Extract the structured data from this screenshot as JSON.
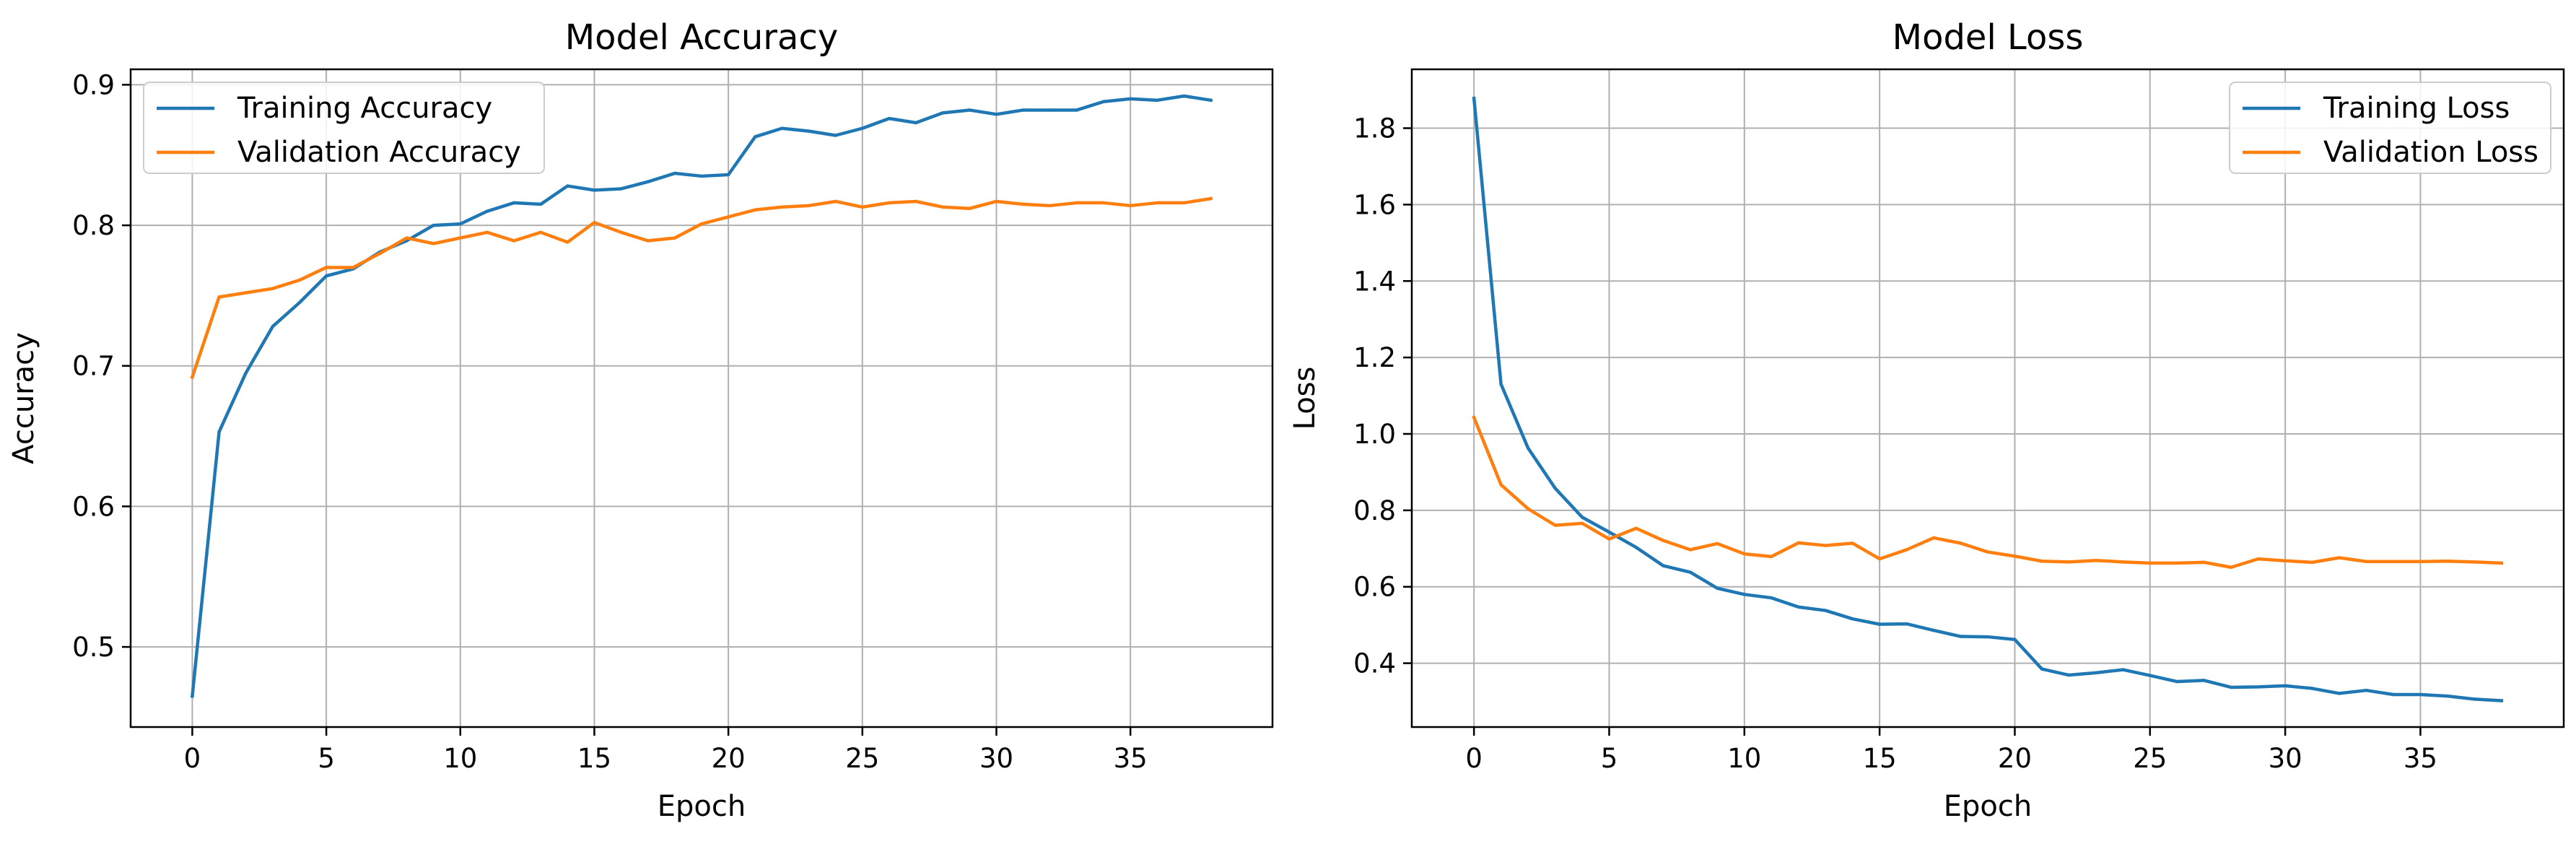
{
  "chart_data": [
    {
      "type": "line",
      "title": "Model Accuracy",
      "xlabel": "Epoch",
      "ylabel": "Accuracy",
      "xlim": [
        -2.3,
        40.3
      ],
      "ylim": [
        0.443,
        0.911
      ],
      "xticks": [
        0,
        5,
        10,
        15,
        20,
        25,
        30,
        35
      ],
      "yticks": [
        0.5,
        0.6,
        0.7,
        0.8,
        0.9
      ],
      "ytick_labels": [
        "0.5",
        "0.6",
        "0.7",
        "0.8",
        "0.9"
      ],
      "grid": true,
      "legend_position": "upper-left",
      "series": [
        {
          "name": "Training Accuracy",
          "color": "#1f77b4",
          "x": [
            0,
            1,
            2,
            3,
            4,
            5,
            6,
            7,
            8,
            9,
            10,
            11,
            12,
            13,
            14,
            15,
            16,
            17,
            18,
            19,
            20,
            21,
            22,
            23,
            24,
            25,
            26,
            27,
            28,
            29,
            30,
            31,
            32,
            33,
            34,
            35,
            36,
            37,
            38
          ],
          "values": [
            0.465,
            0.653,
            0.695,
            0.728,
            0.745,
            0.764,
            0.769,
            0.781,
            0.789,
            0.8,
            0.801,
            0.81,
            0.816,
            0.815,
            0.828,
            0.825,
            0.826,
            0.831,
            0.837,
            0.835,
            0.836,
            0.863,
            0.869,
            0.867,
            0.864,
            0.869,
            0.876,
            0.873,
            0.88,
            0.882,
            0.879,
            0.882,
            0.882,
            0.882,
            0.888,
            0.89,
            0.889,
            0.892,
            0.889
          ]
        },
        {
          "name": "Validation Accuracy",
          "color": "#ff7f0e",
          "x": [
            0,
            1,
            2,
            3,
            4,
            5,
            6,
            7,
            8,
            9,
            10,
            11,
            12,
            13,
            14,
            15,
            16,
            17,
            18,
            19,
            20,
            21,
            22,
            23,
            24,
            25,
            26,
            27,
            28,
            29,
            30,
            31,
            32,
            33,
            34,
            35,
            36,
            37,
            38
          ],
          "values": [
            0.692,
            0.749,
            0.752,
            0.755,
            0.761,
            0.77,
            0.77,
            0.78,
            0.791,
            0.787,
            0.791,
            0.795,
            0.789,
            0.795,
            0.788,
            0.802,
            0.795,
            0.789,
            0.791,
            0.801,
            0.806,
            0.811,
            0.813,
            0.814,
            0.817,
            0.813,
            0.816,
            0.817,
            0.813,
            0.812,
            0.817,
            0.815,
            0.814,
            0.816,
            0.816,
            0.814,
            0.816,
            0.816,
            0.819
          ]
        }
      ]
    },
    {
      "type": "line",
      "title": "Model Loss",
      "xlabel": "Epoch",
      "ylabel": "Loss",
      "xlim": [
        -2.3,
        40.3
      ],
      "ylim": [
        0.233,
        1.954
      ],
      "xticks": [
        0,
        5,
        10,
        15,
        20,
        25,
        30,
        35
      ],
      "yticks": [
        0.4,
        0.6,
        0.8,
        1.0,
        1.2,
        1.4,
        1.6,
        1.8
      ],
      "ytick_labels": [
        "0.4",
        "0.6",
        "0.8",
        "1.0",
        "1.2",
        "1.4",
        "1.6",
        "1.8"
      ],
      "grid": true,
      "legend_position": "upper-right",
      "series": [
        {
          "name": "Training Loss",
          "color": "#1f77b4",
          "x": [
            0,
            1,
            2,
            3,
            4,
            5,
            6,
            7,
            8,
            9,
            10,
            11,
            12,
            13,
            14,
            15,
            16,
            17,
            18,
            19,
            20,
            21,
            22,
            23,
            24,
            25,
            26,
            27,
            28,
            29,
            30,
            31,
            32,
            33,
            34,
            35,
            36,
            37,
            38
          ],
          "values": [
            1.878,
            1.13,
            0.963,
            0.858,
            0.782,
            0.743,
            0.703,
            0.655,
            0.638,
            0.596,
            0.58,
            0.571,
            0.547,
            0.538,
            0.516,
            0.502,
            0.503,
            0.486,
            0.47,
            0.469,
            0.462,
            0.385,
            0.369,
            0.375,
            0.383,
            0.368,
            0.352,
            0.355,
            0.337,
            0.338,
            0.341,
            0.334,
            0.321,
            0.329,
            0.318,
            0.318,
            0.314,
            0.306,
            0.302
          ]
        },
        {
          "name": "Validation Loss",
          "color": "#ff7f0e",
          "x": [
            0,
            1,
            2,
            3,
            4,
            5,
            6,
            7,
            8,
            9,
            10,
            11,
            12,
            13,
            14,
            15,
            16,
            17,
            18,
            19,
            20,
            21,
            22,
            23,
            24,
            25,
            26,
            27,
            28,
            29,
            30,
            31,
            32,
            33,
            34,
            35,
            36,
            37,
            38
          ],
          "values": [
            1.043,
            0.867,
            0.804,
            0.761,
            0.766,
            0.725,
            0.753,
            0.721,
            0.697,
            0.713,
            0.686,
            0.679,
            0.715,
            0.708,
            0.714,
            0.673,
            0.697,
            0.728,
            0.714,
            0.691,
            0.68,
            0.667,
            0.665,
            0.669,
            0.665,
            0.662,
            0.662,
            0.664,
            0.651,
            0.673,
            0.668,
            0.664,
            0.676,
            0.666,
            0.666,
            0.666,
            0.667,
            0.665,
            0.662
          ]
        }
      ]
    }
  ]
}
